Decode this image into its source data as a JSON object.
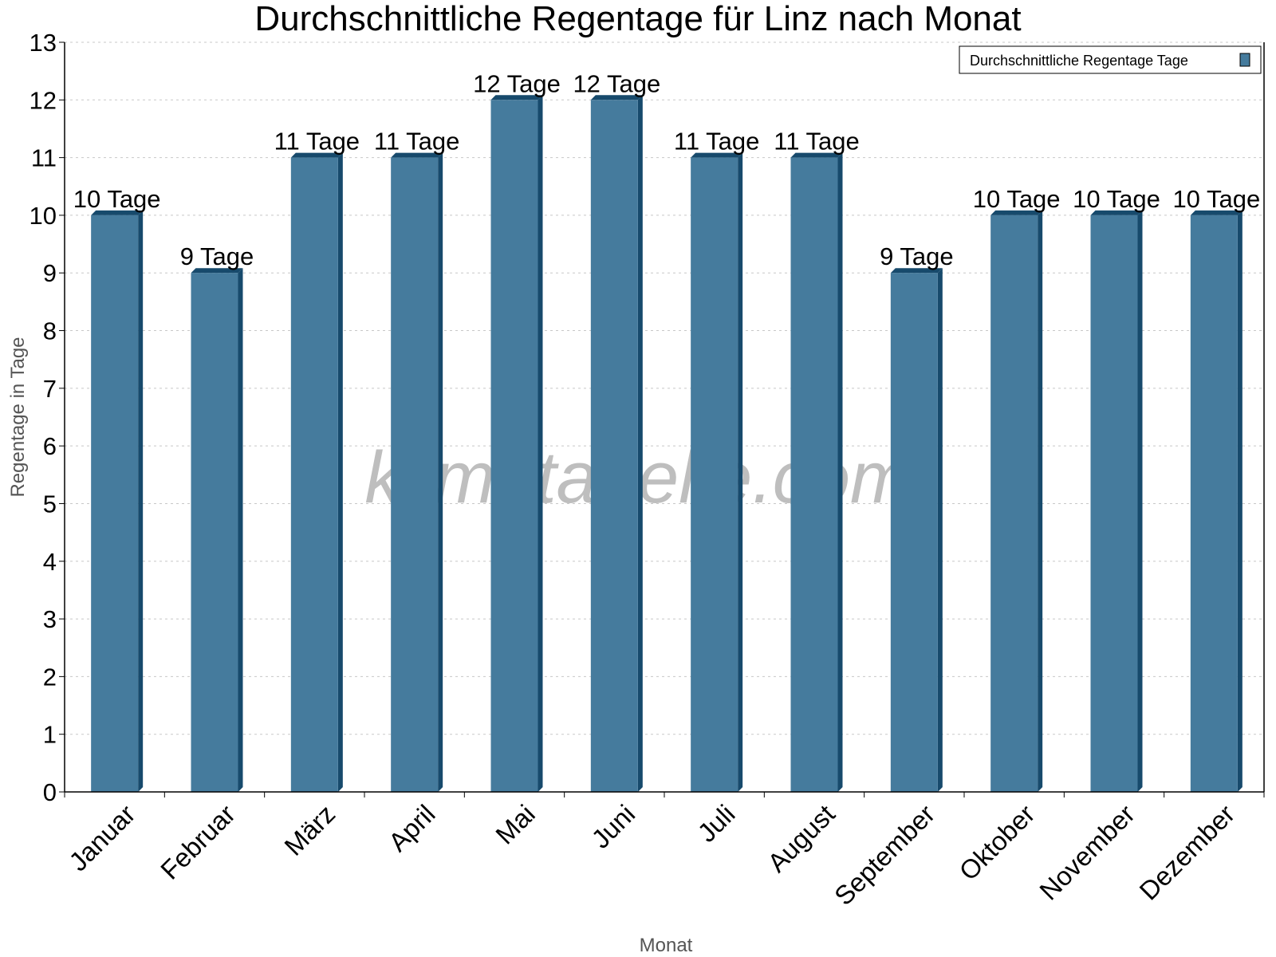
{
  "chart_data": {
    "type": "bar",
    "title": "Durchschnittliche Regentage für Linz nach Monat",
    "xlabel": "Monat",
    "ylabel": "Regentage in Tage",
    "categories": [
      "Januar",
      "Februar",
      "März",
      "April",
      "Mai",
      "Juni",
      "Juli",
      "August",
      "September",
      "Oktober",
      "November",
      "Dezember"
    ],
    "series": [
      {
        "name": "Durchschnittliche Regentage Tage",
        "values": [
          10,
          9,
          11,
          11,
          12,
          12,
          11,
          11,
          9,
          10,
          10,
          10
        ]
      }
    ],
    "data_labels": [
      "10 Tage",
      "9 Tage",
      "11 Tage",
      "11 Tage",
      "12 Tage",
      "12 Tage",
      "11 Tage",
      "11 Tage",
      "9 Tage",
      "10 Tage",
      "10 Tage",
      "10 Tage"
    ],
    "ylim": [
      0,
      13
    ],
    "yticks": [
      0,
      1,
      2,
      3,
      4,
      5,
      6,
      7,
      8,
      9,
      10,
      11,
      12,
      13
    ],
    "grid": true,
    "legend_position": "top-right",
    "watermark": "klimatabelle.com",
    "colors": {
      "bar": "#457b9d",
      "bar_side": "#174a6c",
      "grid": "#c8c8c8",
      "axis_label": "#555555"
    }
  }
}
